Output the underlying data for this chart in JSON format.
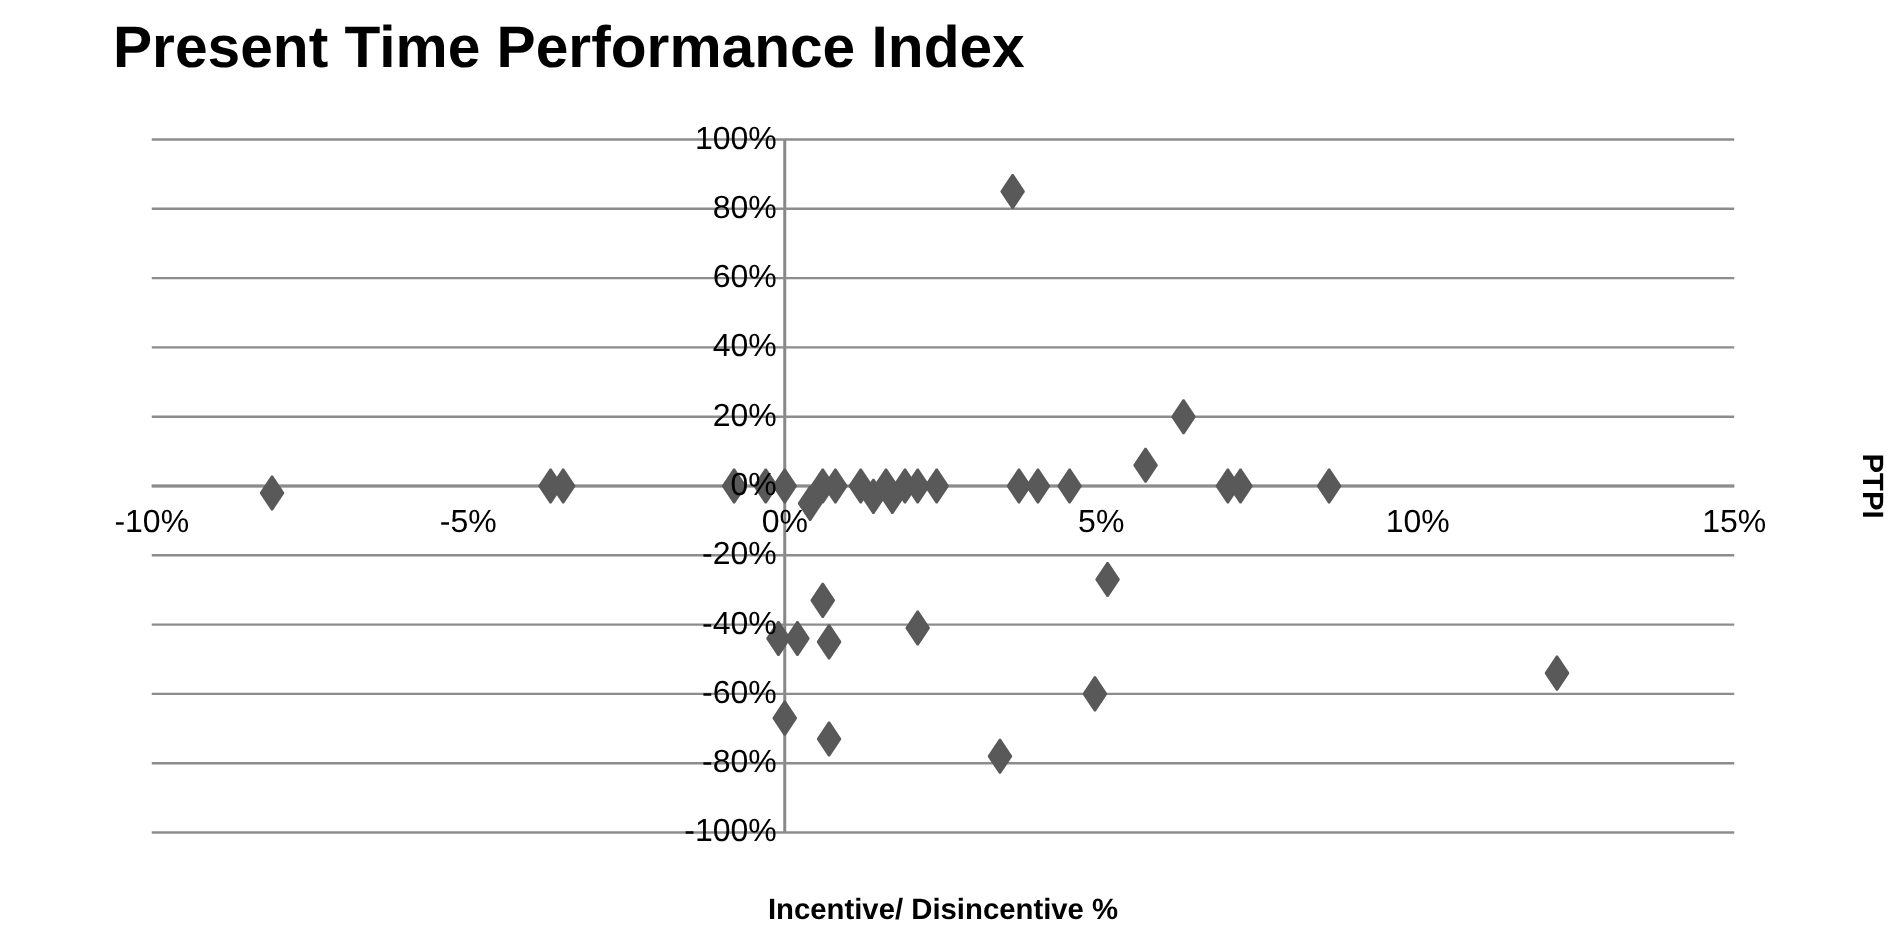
{
  "chart_data": {
    "type": "scatter",
    "title": "Present Time Performance Index",
    "xlabel": "Incentive/ Disincentive %",
    "ylabel": "PTPI",
    "x": [
      -8.1,
      -3.7,
      -3.5,
      -0.8,
      -0.3,
      0,
      0.4,
      0.6,
      0.8,
      1.2,
      1.4,
      1.6,
      1.7,
      1.9,
      2.1,
      2.4,
      3.7,
      4.0,
      4.5,
      7.0,
      7.2,
      8.6,
      5.7,
      6.3,
      3.6,
      0.6,
      -0.1,
      0.2,
      0.7,
      2.1,
      0,
      0.7,
      5.1,
      12.2,
      4.9,
      3.4
    ],
    "values": [
      -2,
      0,
      0,
      0,
      0,
      0,
      -5,
      0,
      0,
      0,
      -3,
      0,
      -3,
      0,
      0,
      0,
      0,
      0,
      0,
      0,
      0,
      0,
      6,
      20,
      85,
      -33,
      -44,
      -44,
      -45,
      -41,
      -67,
      -73,
      -27,
      -54,
      -60,
      -78
    ],
    "color": "#595959",
    "marker": "diamond",
    "grid": "y",
    "xlim": [
      -10,
      15
    ],
    "xticks": [
      {
        "value": -10,
        "label": "-10%"
      },
      {
        "value": -5,
        "label": "-5%"
      },
      {
        "value": 0,
        "label": "0%"
      },
      {
        "value": 5,
        "label": "5%"
      },
      {
        "value": 10,
        "label": "10%"
      },
      {
        "value": 15,
        "label": "15%"
      }
    ],
    "ylim": [
      -100,
      100
    ],
    "yticks": [
      {
        "value": -100,
        "label": "-100%"
      },
      {
        "value": -80,
        "label": "-80%"
      },
      {
        "value": -60,
        "label": "-60%"
      },
      {
        "value": -40,
        "label": "-40%"
      },
      {
        "value": -20,
        "label": "-20%"
      },
      {
        "value": 0,
        "label": "0%"
      },
      {
        "value": 20,
        "label": "20%"
      },
      {
        "value": 40,
        "label": "40%"
      },
      {
        "value": 60,
        "label": "60%"
      },
      {
        "value": 80,
        "label": "80%"
      },
      {
        "value": 100,
        "label": "100%"
      }
    ]
  }
}
